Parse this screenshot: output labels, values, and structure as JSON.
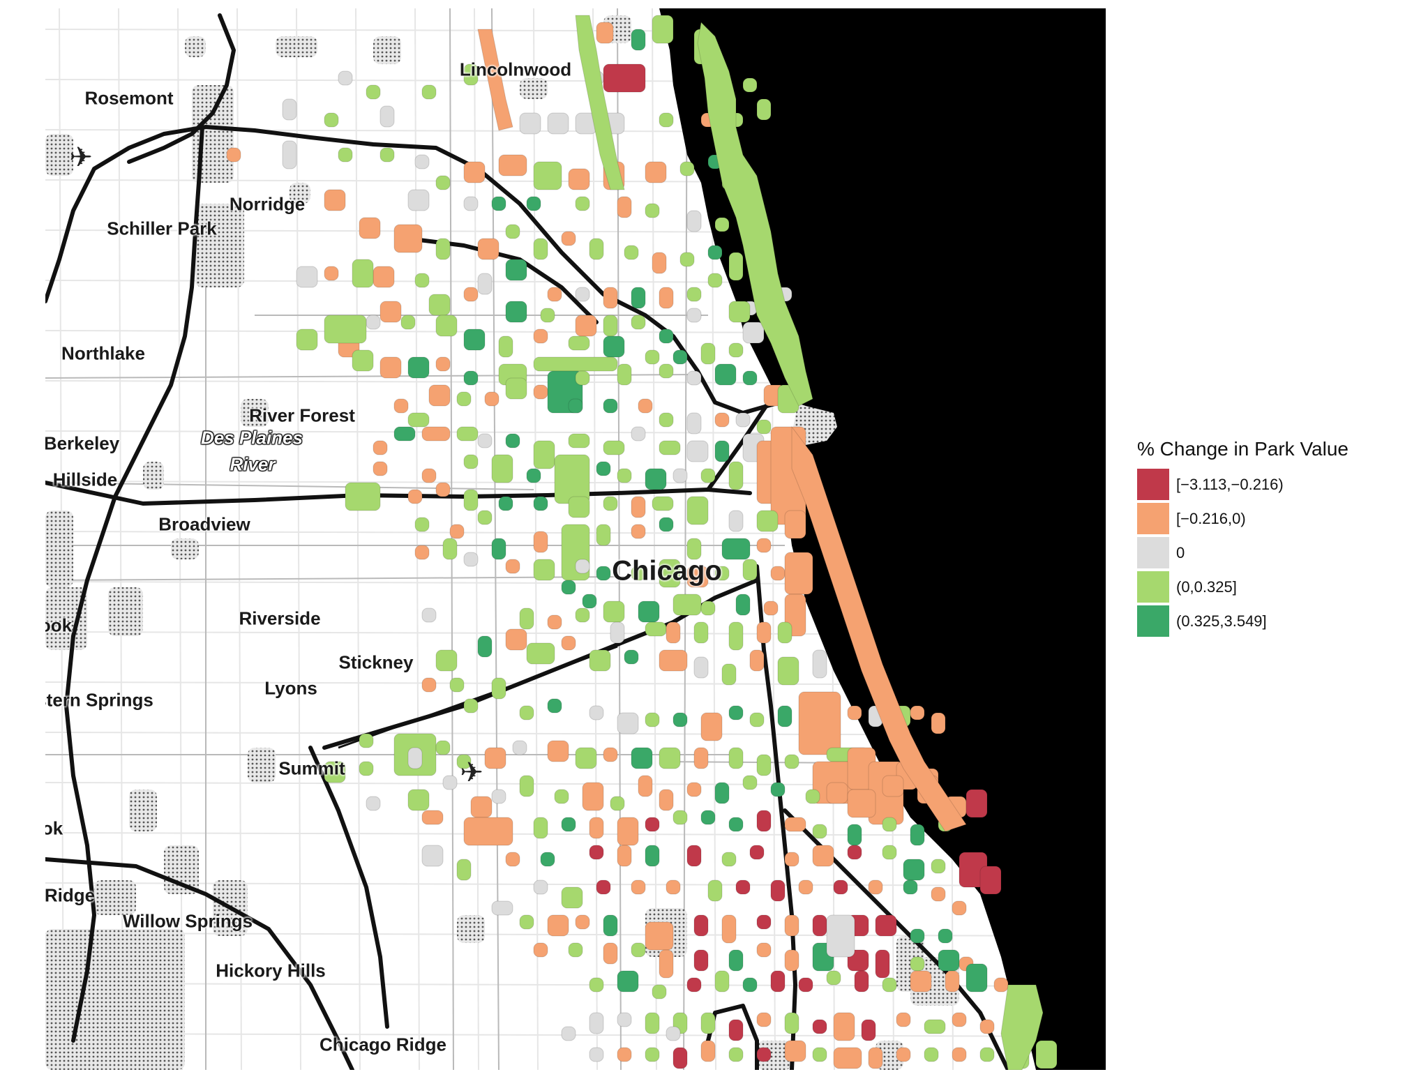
{
  "legend": {
    "title": "% Change in Park Value",
    "items": [
      {
        "label": "[−3.113,−0.216)",
        "color": "#c0394a"
      },
      {
        "label": "[−0.216,0)",
        "color": "#f5a271"
      },
      {
        "label": "0",
        "color": "#dcdcdc"
      },
      {
        "label": "(0,0.325]",
        "color": "#a6d86e"
      },
      {
        "label": "(0.325,3.549]",
        "color": "#3aa868"
      }
    ]
  },
  "places": [
    {
      "id": "lincolnwood",
      "name": "Lincolnwood"
    },
    {
      "id": "rosemont",
      "name": "Rosemont"
    },
    {
      "id": "norridge",
      "name": "Norridge"
    },
    {
      "id": "schiller-park",
      "name": "Schiller Park"
    },
    {
      "id": "northlake",
      "name": "Northlake"
    },
    {
      "id": "river-forest",
      "name": "River Forest"
    },
    {
      "id": "berkeley",
      "name": "Berkeley"
    },
    {
      "id": "des-plaines-1",
      "name": "Des Plaines"
    },
    {
      "id": "des-plaines-2",
      "name": "River"
    },
    {
      "id": "hillside",
      "name": "Hillside"
    },
    {
      "id": "broadview",
      "name": "Broadview"
    },
    {
      "id": "chicago",
      "name": "Chicago"
    },
    {
      "id": "riverside",
      "name": "Riverside"
    },
    {
      "id": "ook",
      "name": "ook"
    },
    {
      "id": "stickney",
      "name": "Stickney"
    },
    {
      "id": "lyons",
      "name": "Lyons"
    },
    {
      "id": "western-springs",
      "name": "stern Springs"
    },
    {
      "id": "summit",
      "name": "Summit"
    },
    {
      "id": "ok",
      "name": "ok"
    },
    {
      "id": "ridge",
      "name": "Ridge"
    },
    {
      "id": "willow-springs",
      "name": "Willow Springs"
    },
    {
      "id": "hickory-hills",
      "name": "Hickory Hills"
    },
    {
      "id": "chicago-ridge",
      "name": "Chicago Ridge"
    }
  ],
  "icons": [
    {
      "id": "airport-ohare",
      "name": "airplane-icon"
    },
    {
      "id": "airport-midway",
      "name": "airplane-icon"
    }
  ],
  "colors": {
    "lake": "#000000",
    "land": "#ffffff",
    "road": "#111111",
    "minor_road": "#dddddd"
  }
}
